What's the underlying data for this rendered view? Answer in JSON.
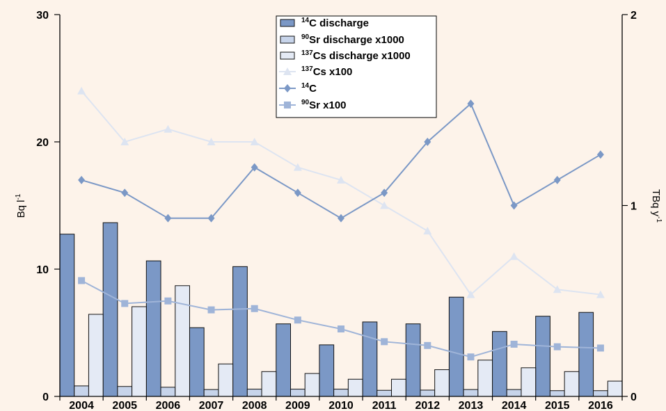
{
  "chart_data": {
    "type": "bar",
    "categories": [
      "2004",
      "2005",
      "2006",
      "2007",
      "2008",
      "2009",
      "2010",
      "2011",
      "2012",
      "2013",
      "2014",
      "2015",
      "2016"
    ],
    "y_left": {
      "label": "Bq l",
      "label_sup": "-1",
      "range": [
        0,
        30
      ],
      "ticks": [
        "0",
        "10",
        "20",
        "30"
      ]
    },
    "y_right": {
      "label": "TBq y",
      "label_sup": "-1",
      "range": [
        0,
        2
      ],
      "ticks": [
        "0",
        "1",
        "2"
      ]
    },
    "colors": {
      "c14_discharge": "#7b98c6",
      "sr90_discharge": "#c7d4ea",
      "cs137_discharge": "#e4eaf5",
      "cs137_line": "#dde4f1",
      "c14_line": "#7b98c6",
      "sr90_line": "#9fb4d8",
      "bar_edge": "#111111",
      "background": "#fdf3ea"
    },
    "bars": [
      {
        "key": "c14_discharge",
        "axis": "right",
        "name": "C discharge",
        "name_sup": "14",
        "values": [
          0.85,
          0.91,
          0.71,
          0.36,
          0.68,
          0.38,
          0.27,
          0.39,
          0.38,
          0.52,
          0.34,
          0.42,
          0.44
        ]
      },
      {
        "key": "sr90_discharge",
        "axis": "right",
        "name": "Sr discharge x1000",
        "name_sup": "90",
        "values": [
          0.055,
          0.052,
          0.048,
          0.036,
          0.038,
          0.038,
          0.038,
          0.032,
          0.033,
          0.036,
          0.036,
          0.03,
          0.03
        ]
      },
      {
        "key": "cs137_discharge",
        "axis": "right",
        "name": "Cs discharge x1000",
        "name_sup": "137",
        "values": [
          0.43,
          0.47,
          0.58,
          0.17,
          0.13,
          0.12,
          0.09,
          0.09,
          0.14,
          0.19,
          0.15,
          0.13,
          0.08
        ]
      }
    ],
    "lines": [
      {
        "key": "cs137_line",
        "axis": "left",
        "name": "Cs x100",
        "name_sup": "137",
        "marker": "triangle",
        "values": [
          24,
          20,
          21,
          20,
          20,
          18,
          17,
          15,
          13,
          8,
          11,
          8.4,
          8
        ]
      },
      {
        "key": "c14_line",
        "axis": "left",
        "name": "C",
        "name_sup": "14",
        "marker": "diamond",
        "values": [
          17,
          16,
          14,
          14,
          18,
          16,
          14,
          16,
          20,
          23,
          15,
          17,
          19
        ]
      },
      {
        "key": "sr90_line",
        "axis": "left",
        "name": "Sr x100",
        "name_sup": "90",
        "marker": "square",
        "values": [
          9.1,
          7.3,
          7.5,
          6.8,
          6.9,
          6.0,
          5.3,
          4.3,
          4.0,
          3.1,
          4.1,
          3.9,
          3.8
        ]
      }
    ],
    "legend_position": "top-center",
    "grid": false
  }
}
